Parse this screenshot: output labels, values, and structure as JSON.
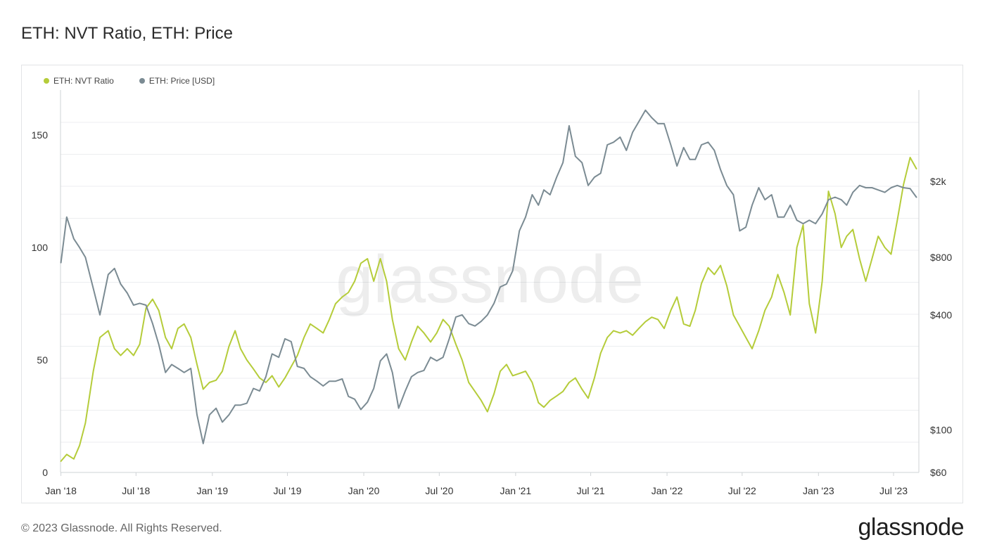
{
  "title": "ETH: NVT Ratio, ETH: Price",
  "footer": {
    "copyright": "© 2023 Glassnode. All Rights Reserved.",
    "logo": "glassnode"
  },
  "watermark": "glassnode",
  "colors": {
    "nvt": "#b5cc3a",
    "price": "#7b8b93",
    "grid": "#eceef0",
    "axis_text": "#333333"
  },
  "chart_data": {
    "type": "line",
    "title": "ETH: NVT Ratio, ETH: Price",
    "x_ticks": [
      "Jan '18",
      "Jul '18",
      "Jan '19",
      "Jul '19",
      "Jan '20",
      "Jul '20",
      "Jan '21",
      "Jul '21",
      "Jan '22",
      "Jul '22",
      "Jan '23",
      "Jul '23"
    ],
    "x_range": [
      "2017-12-31",
      "2023-08-31"
    ],
    "y_left": {
      "ticks": [
        0,
        50,
        100,
        150
      ],
      "range": [
        0,
        170
      ]
    },
    "y_right": {
      "scale": "log",
      "ticks": [
        60,
        100,
        400,
        800,
        2000
      ],
      "tick_labels": [
        "$60",
        "$100",
        "$400",
        "$800",
        "$2k"
      ],
      "range": [
        60,
        6000
      ]
    },
    "legend": {
      "position": "top-left"
    },
    "series": [
      {
        "name": "ETH: NVT Ratio",
        "axis": "left",
        "color": "#b5cc3a",
        "points": [
          [
            "2018-01-01",
            5
          ],
          [
            "2018-01-15",
            8
          ],
          [
            "2018-02-01",
            6
          ],
          [
            "2018-02-15",
            12
          ],
          [
            "2018-03-01",
            22
          ],
          [
            "2018-03-20",
            45
          ],
          [
            "2018-04-05",
            60
          ],
          [
            "2018-04-25",
            63
          ],
          [
            "2018-05-10",
            55
          ],
          [
            "2018-05-25",
            52
          ],
          [
            "2018-06-10",
            55
          ],
          [
            "2018-06-25",
            52
          ],
          [
            "2018-07-10",
            57
          ],
          [
            "2018-07-25",
            73
          ],
          [
            "2018-08-10",
            77
          ],
          [
            "2018-08-25",
            72
          ],
          [
            "2018-09-10",
            60
          ],
          [
            "2018-09-25",
            55
          ],
          [
            "2018-10-10",
            64
          ],
          [
            "2018-10-25",
            66
          ],
          [
            "2018-11-10",
            60
          ],
          [
            "2018-11-25",
            48
          ],
          [
            "2018-12-10",
            37
          ],
          [
            "2018-12-25",
            40
          ],
          [
            "2019-01-10",
            41
          ],
          [
            "2019-01-25",
            45
          ],
          [
            "2019-02-10",
            56
          ],
          [
            "2019-02-25",
            63
          ],
          [
            "2019-03-10",
            55
          ],
          [
            "2019-03-25",
            50
          ],
          [
            "2019-04-10",
            46
          ],
          [
            "2019-04-25",
            42
          ],
          [
            "2019-05-10",
            40
          ],
          [
            "2019-05-25",
            43
          ],
          [
            "2019-06-10",
            38
          ],
          [
            "2019-06-25",
            42
          ],
          [
            "2019-07-10",
            47
          ],
          [
            "2019-07-25",
            52
          ],
          [
            "2019-08-10",
            60
          ],
          [
            "2019-08-25",
            66
          ],
          [
            "2019-09-10",
            64
          ],
          [
            "2019-09-25",
            62
          ],
          [
            "2019-10-10",
            68
          ],
          [
            "2019-10-25",
            75
          ],
          [
            "2019-11-10",
            78
          ],
          [
            "2019-11-25",
            80
          ],
          [
            "2019-12-10",
            85
          ],
          [
            "2019-12-25",
            93
          ],
          [
            "2020-01-10",
            95
          ],
          [
            "2020-01-25",
            85
          ],
          [
            "2020-02-10",
            95
          ],
          [
            "2020-02-25",
            85
          ],
          [
            "2020-03-10",
            68
          ],
          [
            "2020-03-25",
            55
          ],
          [
            "2020-04-10",
            50
          ],
          [
            "2020-04-25",
            58
          ],
          [
            "2020-05-10",
            65
          ],
          [
            "2020-05-25",
            62
          ],
          [
            "2020-06-10",
            58
          ],
          [
            "2020-06-25",
            62
          ],
          [
            "2020-07-10",
            68
          ],
          [
            "2020-07-25",
            65
          ],
          [
            "2020-08-10",
            57
          ],
          [
            "2020-08-25",
            50
          ],
          [
            "2020-09-10",
            40
          ],
          [
            "2020-09-25",
            36
          ],
          [
            "2020-10-10",
            32
          ],
          [
            "2020-10-25",
            27
          ],
          [
            "2020-11-10",
            35
          ],
          [
            "2020-11-25",
            45
          ],
          [
            "2020-12-10",
            48
          ],
          [
            "2020-12-25",
            43
          ],
          [
            "2021-01-10",
            44
          ],
          [
            "2021-01-25",
            45
          ],
          [
            "2021-02-10",
            40
          ],
          [
            "2021-02-25",
            31
          ],
          [
            "2021-03-10",
            29
          ],
          [
            "2021-03-25",
            32
          ],
          [
            "2021-04-10",
            34
          ],
          [
            "2021-04-25",
            36
          ],
          [
            "2021-05-10",
            40
          ],
          [
            "2021-05-25",
            42
          ],
          [
            "2021-06-10",
            37
          ],
          [
            "2021-06-25",
            33
          ],
          [
            "2021-07-10",
            42
          ],
          [
            "2021-07-25",
            53
          ],
          [
            "2021-08-10",
            60
          ],
          [
            "2021-08-25",
            63
          ],
          [
            "2021-09-10",
            62
          ],
          [
            "2021-09-25",
            63
          ],
          [
            "2021-10-10",
            61
          ],
          [
            "2021-10-25",
            64
          ],
          [
            "2021-11-10",
            67
          ],
          [
            "2021-11-25",
            69
          ],
          [
            "2021-12-10",
            68
          ],
          [
            "2021-12-25",
            64
          ],
          [
            "2022-01-10",
            72
          ],
          [
            "2022-01-25",
            78
          ],
          [
            "2022-02-10",
            66
          ],
          [
            "2022-02-25",
            65
          ],
          [
            "2022-03-10",
            72
          ],
          [
            "2022-03-25",
            84
          ],
          [
            "2022-04-10",
            91
          ],
          [
            "2022-04-25",
            88
          ],
          [
            "2022-05-10",
            92
          ],
          [
            "2022-05-25",
            83
          ],
          [
            "2022-06-10",
            70
          ],
          [
            "2022-06-25",
            65
          ],
          [
            "2022-07-10",
            60
          ],
          [
            "2022-07-25",
            55
          ],
          [
            "2022-08-10",
            63
          ],
          [
            "2022-08-25",
            72
          ],
          [
            "2022-09-10",
            78
          ],
          [
            "2022-09-25",
            88
          ],
          [
            "2022-10-10",
            80
          ],
          [
            "2022-10-25",
            70
          ],
          [
            "2022-11-10",
            100
          ],
          [
            "2022-11-25",
            110
          ],
          [
            "2022-12-10",
            75
          ],
          [
            "2022-12-25",
            62
          ],
          [
            "2023-01-10",
            85
          ],
          [
            "2023-01-25",
            125
          ],
          [
            "2023-02-10",
            115
          ],
          [
            "2023-02-25",
            100
          ],
          [
            "2023-03-10",
            105
          ],
          [
            "2023-03-25",
            108
          ],
          [
            "2023-04-10",
            95
          ],
          [
            "2023-04-25",
            85
          ],
          [
            "2023-05-10",
            95
          ],
          [
            "2023-05-25",
            105
          ],
          [
            "2023-06-10",
            100
          ],
          [
            "2023-06-25",
            97
          ],
          [
            "2023-07-10",
            112
          ],
          [
            "2023-07-25",
            128
          ],
          [
            "2023-08-10",
            140
          ],
          [
            "2023-08-25",
            135
          ]
        ]
      },
      {
        "name": "ETH: Price [USD]",
        "axis": "right",
        "color": "#7b8b93",
        "points": [
          [
            "2018-01-01",
            750
          ],
          [
            "2018-01-15",
            1300
          ],
          [
            "2018-02-01",
            1000
          ],
          [
            "2018-02-15",
            900
          ],
          [
            "2018-03-01",
            800
          ],
          [
            "2018-03-20",
            550
          ],
          [
            "2018-04-05",
            400
          ],
          [
            "2018-04-25",
            650
          ],
          [
            "2018-05-10",
            700
          ],
          [
            "2018-05-25",
            580
          ],
          [
            "2018-06-10",
            520
          ],
          [
            "2018-06-25",
            450
          ],
          [
            "2018-07-10",
            460
          ],
          [
            "2018-07-25",
            450
          ],
          [
            "2018-08-10",
            360
          ],
          [
            "2018-08-25",
            280
          ],
          [
            "2018-09-10",
            200
          ],
          [
            "2018-09-25",
            220
          ],
          [
            "2018-10-10",
            210
          ],
          [
            "2018-10-25",
            200
          ],
          [
            "2018-11-10",
            210
          ],
          [
            "2018-11-25",
            120
          ],
          [
            "2018-12-10",
            85
          ],
          [
            "2018-12-25",
            120
          ],
          [
            "2019-01-10",
            130
          ],
          [
            "2019-01-25",
            110
          ],
          [
            "2019-02-10",
            120
          ],
          [
            "2019-02-25",
            135
          ],
          [
            "2019-03-10",
            135
          ],
          [
            "2019-03-25",
            138
          ],
          [
            "2019-04-10",
            165
          ],
          [
            "2019-04-25",
            160
          ],
          [
            "2019-05-10",
            190
          ],
          [
            "2019-05-25",
            250
          ],
          [
            "2019-06-10",
            240
          ],
          [
            "2019-06-25",
            300
          ],
          [
            "2019-07-10",
            290
          ],
          [
            "2019-07-25",
            215
          ],
          [
            "2019-08-10",
            210
          ],
          [
            "2019-08-25",
            190
          ],
          [
            "2019-09-10",
            180
          ],
          [
            "2019-09-25",
            170
          ],
          [
            "2019-10-10",
            180
          ],
          [
            "2019-10-25",
            180
          ],
          [
            "2019-11-10",
            185
          ],
          [
            "2019-11-25",
            150
          ],
          [
            "2019-12-10",
            145
          ],
          [
            "2019-12-25",
            128
          ],
          [
            "2020-01-10",
            140
          ],
          [
            "2020-01-25",
            165
          ],
          [
            "2020-02-10",
            230
          ],
          [
            "2020-02-25",
            250
          ],
          [
            "2020-03-10",
            200
          ],
          [
            "2020-03-25",
            130
          ],
          [
            "2020-04-10",
            160
          ],
          [
            "2020-04-25",
            190
          ],
          [
            "2020-05-10",
            200
          ],
          [
            "2020-05-25",
            205
          ],
          [
            "2020-06-10",
            240
          ],
          [
            "2020-06-25",
            230
          ],
          [
            "2020-07-10",
            240
          ],
          [
            "2020-07-25",
            300
          ],
          [
            "2020-08-10",
            390
          ],
          [
            "2020-08-25",
            400
          ],
          [
            "2020-09-10",
            360
          ],
          [
            "2020-09-25",
            350
          ],
          [
            "2020-10-10",
            370
          ],
          [
            "2020-10-25",
            400
          ],
          [
            "2020-11-10",
            460
          ],
          [
            "2020-11-25",
            560
          ],
          [
            "2020-12-10",
            580
          ],
          [
            "2020-12-25",
            680
          ],
          [
            "2021-01-10",
            1100
          ],
          [
            "2021-01-25",
            1300
          ],
          [
            "2021-02-10",
            1700
          ],
          [
            "2021-02-25",
            1500
          ],
          [
            "2021-03-10",
            1800
          ],
          [
            "2021-03-25",
            1700
          ],
          [
            "2021-04-10",
            2100
          ],
          [
            "2021-04-25",
            2500
          ],
          [
            "2021-05-10",
            3900
          ],
          [
            "2021-05-25",
            2700
          ],
          [
            "2021-06-10",
            2500
          ],
          [
            "2021-06-25",
            1900
          ],
          [
            "2021-07-10",
            2100
          ],
          [
            "2021-07-25",
            2200
          ],
          [
            "2021-08-10",
            3100
          ],
          [
            "2021-08-25",
            3200
          ],
          [
            "2021-09-10",
            3400
          ],
          [
            "2021-09-25",
            2900
          ],
          [
            "2021-10-10",
            3600
          ],
          [
            "2021-10-25",
            4100
          ],
          [
            "2021-11-10",
            4700
          ],
          [
            "2021-11-25",
            4300
          ],
          [
            "2021-12-10",
            4000
          ],
          [
            "2021-12-25",
            4000
          ],
          [
            "2022-01-10",
            3100
          ],
          [
            "2022-01-25",
            2400
          ],
          [
            "2022-02-10",
            3000
          ],
          [
            "2022-02-25",
            2600
          ],
          [
            "2022-03-10",
            2600
          ],
          [
            "2022-03-25",
            3100
          ],
          [
            "2022-04-10",
            3200
          ],
          [
            "2022-04-25",
            2900
          ],
          [
            "2022-05-10",
            2300
          ],
          [
            "2022-05-25",
            1900
          ],
          [
            "2022-06-10",
            1700
          ],
          [
            "2022-06-25",
            1100
          ],
          [
            "2022-07-10",
            1150
          ],
          [
            "2022-07-25",
            1500
          ],
          [
            "2022-08-10",
            1850
          ],
          [
            "2022-08-25",
            1600
          ],
          [
            "2022-09-10",
            1700
          ],
          [
            "2022-09-25",
            1300
          ],
          [
            "2022-10-10",
            1300
          ],
          [
            "2022-10-25",
            1500
          ],
          [
            "2022-11-10",
            1250
          ],
          [
            "2022-11-25",
            1200
          ],
          [
            "2022-12-10",
            1250
          ],
          [
            "2022-12-25",
            1200
          ],
          [
            "2023-01-10",
            1350
          ],
          [
            "2023-01-25",
            1600
          ],
          [
            "2023-02-10",
            1650
          ],
          [
            "2023-02-25",
            1600
          ],
          [
            "2023-03-10",
            1500
          ],
          [
            "2023-03-25",
            1750
          ],
          [
            "2023-04-10",
            1900
          ],
          [
            "2023-04-25",
            1850
          ],
          [
            "2023-05-10",
            1850
          ],
          [
            "2023-05-25",
            1800
          ],
          [
            "2023-06-10",
            1750
          ],
          [
            "2023-06-25",
            1850
          ],
          [
            "2023-07-10",
            1900
          ],
          [
            "2023-07-25",
            1850
          ],
          [
            "2023-08-10",
            1830
          ],
          [
            "2023-08-25",
            1650
          ]
        ]
      }
    ]
  }
}
